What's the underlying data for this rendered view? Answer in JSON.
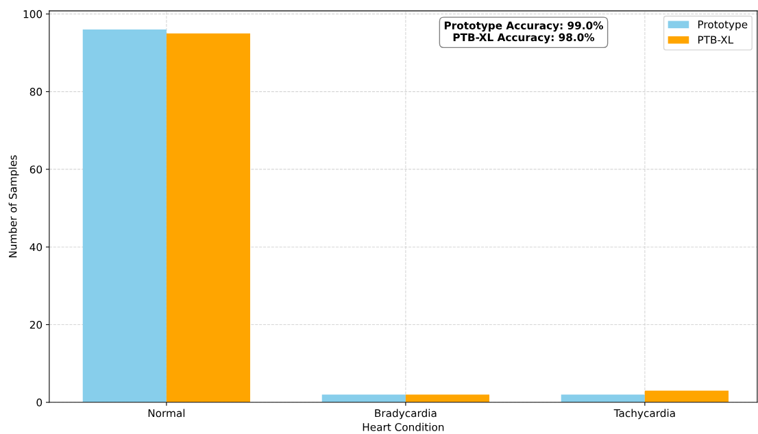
{
  "chart_data": {
    "type": "bar",
    "xlabel": "Heart Condition",
    "ylabel": "Number of Samples",
    "categories": [
      "Normal",
      "Bradycardia",
      "Tachycardia"
    ],
    "series": [
      {
        "name": "Prototype",
        "color": "#87ceeb",
        "values": [
          96,
          2,
          2
        ]
      },
      {
        "name": "PTB-XL",
        "color": "#ffa500",
        "values": [
          95,
          2,
          3
        ]
      }
    ],
    "ylim": [
      0,
      100.8
    ],
    "yticks": [
      0,
      20,
      40,
      60,
      80,
      100
    ],
    "grid": true,
    "legend": "top right",
    "annotations": [
      "Prototype Accuracy: 99.0%\nPTB-XL Accuracy: 98.0%"
    ]
  }
}
